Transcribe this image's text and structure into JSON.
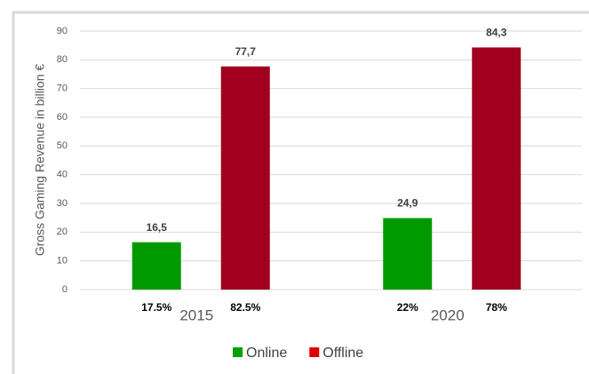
{
  "chart_data": {
    "type": "bar",
    "y_label": "Gross Gaming Revenue in billion €",
    "categories": [
      "2015",
      "2020"
    ],
    "series": [
      {
        "name": "Online",
        "color": "#009a00",
        "legend_color": "#00a000",
        "values": [
          16.5,
          24.9
        ],
        "value_labels": [
          "16,5",
          "24,9"
        ],
        "shares": [
          17.5,
          22
        ],
        "share_labels": [
          "17.5%",
          "22%"
        ]
      },
      {
        "name": "Offline",
        "color": "#a0001e",
        "legend_color": "#e00000",
        "values": [
          77.7,
          84.3
        ],
        "value_labels": [
          "77,7",
          "84,3"
        ],
        "shares": [
          82.5,
          78
        ],
        "share_labels": [
          "82.5%",
          "78%"
        ]
      }
    ],
    "ylim": [
      0,
      90
    ],
    "yticks": [
      0,
      10,
      20,
      30,
      40,
      50,
      60,
      70,
      80,
      90
    ],
    "grid": true
  }
}
